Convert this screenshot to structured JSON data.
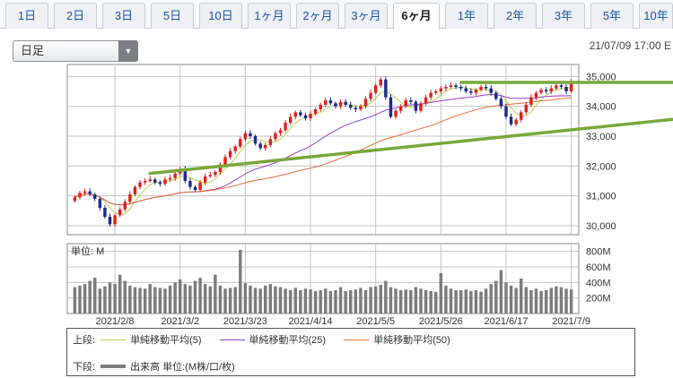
{
  "tabs": [
    {
      "label": "1日"
    },
    {
      "label": "2日"
    },
    {
      "label": "3日"
    },
    {
      "label": "5日"
    },
    {
      "label": "10日"
    },
    {
      "label": "1ヶ月"
    },
    {
      "label": "2ヶ月"
    },
    {
      "label": "3ヶ月"
    },
    {
      "label": "6ヶ月",
      "active": true
    },
    {
      "label": "1年"
    },
    {
      "label": "2年"
    },
    {
      "label": "3年"
    },
    {
      "label": "5年"
    },
    {
      "label": "10年"
    }
  ],
  "period_select": {
    "value": "日足"
  },
  "timestamp": "21/07/09 17:00 E",
  "legend": {
    "upper_label": "上段:",
    "lower_label": "下段:",
    "ma5": "単純移動平均(5)",
    "ma25": "単純移動平均(25)",
    "ma50": "単純移動平均(50)",
    "volume": "出来高 単位:(M株/口/枚)"
  },
  "colors": {
    "up": "#e0221c",
    "down": "#1c2c8c",
    "ma5": "#b9d04a",
    "ma25": "#9a3ccc",
    "ma50": "#e2703a",
    "trendline": "#78a83a",
    "volume": "#7c7c7c",
    "grid": "#c5c5c5"
  },
  "chart_data": [
    {
      "type": "candlestick",
      "title": "",
      "y_ticks": [
        "30,000",
        "31,000",
        "32,000",
        "33,000",
        "34,000",
        "35,000"
      ],
      "ylim": [
        29700,
        35400
      ],
      "x_ticks": [
        "2021/2/8",
        "2021/3/2",
        "2021/3/23",
        "2021/4/14",
        "2021/5/5",
        "2021/5/26",
        "2021/6/17",
        "2021/7/9"
      ],
      "close": [
        30950,
        31100,
        31150,
        31050,
        30900,
        30600,
        30300,
        30050,
        30350,
        30550,
        30800,
        31050,
        31300,
        31450,
        31500,
        31550,
        31450,
        31400,
        31550,
        31600,
        31750,
        31900,
        31500,
        31300,
        31200,
        31450,
        31650,
        31700,
        31800,
        32050,
        32300,
        32500,
        32650,
        32900,
        33100,
        33000,
        32750,
        32600,
        32700,
        32900,
        33100,
        33200,
        33450,
        33650,
        33800,
        33700,
        33600,
        33750,
        33900,
        34050,
        34200,
        34100,
        34000,
        34150,
        34050,
        33950,
        33900,
        34000,
        34250,
        34450,
        34700,
        34900,
        34300,
        33650,
        33850,
        34000,
        34200,
        34150,
        33850,
        34100,
        34300,
        34450,
        34500,
        34600,
        34650,
        34700,
        34650,
        34600,
        34500,
        34450,
        34550,
        34650,
        34600,
        34450,
        34250,
        34000,
        33650,
        33400,
        33550,
        33800,
        34050,
        34300,
        34450,
        34550,
        34500,
        34600,
        34700,
        34650,
        34500,
        34800
      ],
      "series": [
        {
          "name": "単純移動平均(5)",
          "role": "ma5"
        },
        {
          "name": "単純移動平均(25)",
          "role": "ma25"
        },
        {
          "name": "単純移動平均(50)",
          "role": "ma50"
        }
      ],
      "trendlines": [
        {
          "from": [
            15,
            31750
          ],
          "to": [
            130,
            33750
          ]
        },
        {
          "from": [
            77,
            34800
          ],
          "to": [
            130,
            34800
          ]
        }
      ]
    },
    {
      "type": "bar",
      "label": "単位: M",
      "y_ticks": [
        "200M",
        "400M",
        "600M",
        "800M"
      ],
      "ylim": [
        0,
        900
      ],
      "values": [
        340,
        360,
        380,
        420,
        460,
        320,
        350,
        400,
        380,
        500,
        420,
        360,
        340,
        330,
        320,
        380,
        340,
        330,
        320,
        360,
        400,
        440,
        380,
        360,
        420,
        460,
        380,
        350,
        500,
        360,
        320,
        330,
        340,
        820,
        390,
        360,
        330,
        320,
        360,
        380,
        350,
        340,
        320,
        300,
        330,
        300,
        320,
        310,
        290,
        300,
        320,
        290,
        300,
        340,
        290,
        300,
        310,
        330,
        300,
        340,
        350,
        370,
        420,
        340,
        320,
        300,
        310,
        300,
        340,
        320,
        300,
        290,
        280,
        520,
        360,
        320,
        300,
        300,
        310,
        290,
        300,
        280,
        320,
        380,
        420,
        560,
        400,
        360,
        330,
        450,
        340,
        300,
        320,
        290,
        300,
        330,
        350,
        340,
        320,
        310
      ]
    }
  ]
}
